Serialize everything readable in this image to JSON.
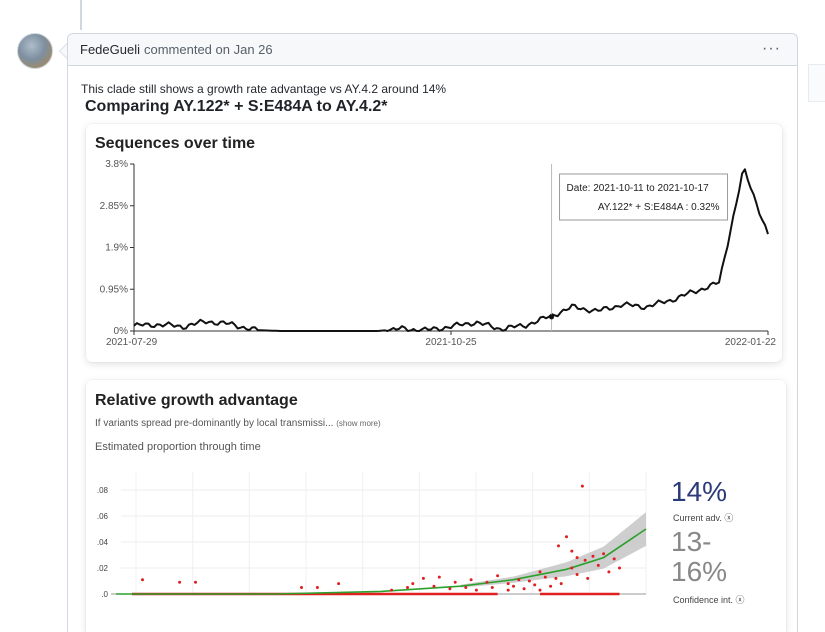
{
  "comment": {
    "author": "FedeGueli",
    "meta": "commented on Jan 26",
    "menu_label": "···",
    "body_text": "This clade still shows a growth rate advantage vs AY.4.2 around 14%",
    "body_heading": "Comparing AY.122* + S:E484A to AY.4.2*"
  },
  "seq_chart": {
    "title": "Sequences over time",
    "tooltip": {
      "line1": "Date: 2021-10-11 to 2021-10-17",
      "line2": "AY.122* + S:E484A : 0.32%"
    }
  },
  "growth_chart": {
    "title": "Relative growth advantage",
    "subtitle": "If variants spread pre-dominantly by local transmissi...",
    "show_more": "(show more)",
    "estimated_label": "Estimated proportion through time",
    "current_adv_value": "14%",
    "current_adv_label": "Current adv. ⓧ",
    "ci_value_top": "13-",
    "ci_value_bottom": "16%",
    "ci_label": "Confidence int. ⓧ"
  },
  "chart_data": [
    {
      "type": "line",
      "title": "Sequences over time",
      "x_ticks": [
        "2021-07-29",
        "2021-10-25",
        "2022-01-22"
      ],
      "y_ticks": [
        "0%",
        "0.95%",
        "1.9%",
        "2.85%",
        "3.8%"
      ],
      "ylim": [
        0,
        3.8
      ],
      "x": [
        0,
        1,
        2,
        3,
        4,
        5,
        6,
        7,
        8,
        9,
        10,
        11,
        12,
        13,
        14,
        15,
        16,
        17,
        18,
        19,
        20,
        21,
        22,
        23,
        24,
        25,
        26
      ],
      "series": [
        {
          "values": [
            0.12,
            0.15,
            0.1,
            0.22,
            0.15,
            0.02,
            0.0,
            0.0,
            0.0,
            0.0,
            0.0,
            0.05,
            0.02,
            0.1,
            0.2,
            0.05,
            0.12,
            0.32,
            0.55,
            0.45,
            0.6,
            0.55,
            0.7,
            0.9,
            1.1,
            3.7,
            2.2
          ]
        }
      ],
      "tooltip_x_index": 17
    },
    {
      "type": "scatter",
      "title": "Relative growth advantage",
      "ylabel": "Estimated proportion through time",
      "y_ticks": [
        ".0",
        ".02",
        ".04",
        ".06",
        ".08"
      ],
      "ylim": [
        0,
        0.09
      ],
      "scatter_points": [
        [
          0.05,
          0.011
        ],
        [
          0.12,
          0.009
        ],
        [
          0.15,
          0.009
        ],
        [
          0.35,
          0.005
        ],
        [
          0.38,
          0.005
        ],
        [
          0.42,
          0.008
        ],
        [
          0.52,
          0.003
        ],
        [
          0.55,
          0.005
        ],
        [
          0.56,
          0.008
        ],
        [
          0.58,
          0.012
        ],
        [
          0.6,
          0.006
        ],
        [
          0.61,
          0.013
        ],
        [
          0.63,
          0.004
        ],
        [
          0.64,
          0.009
        ],
        [
          0.66,
          0.005
        ],
        [
          0.67,
          0.011
        ],
        [
          0.68,
          0.003
        ],
        [
          0.7,
          0.009
        ],
        [
          0.71,
          0.005
        ],
        [
          0.72,
          0.014
        ],
        [
          0.74,
          0.008
        ],
        [
          0.75,
          0.006
        ],
        [
          0.76,
          0.011
        ],
        [
          0.77,
          0.004
        ],
        [
          0.78,
          0.01
        ],
        [
          0.79,
          0.007
        ],
        [
          0.8,
          0.017
        ],
        [
          0.81,
          0.013
        ],
        [
          0.82,
          0.006
        ],
        [
          0.83,
          0.012
        ],
        [
          0.84,
          0.008
        ],
        [
          0.85,
          0.044
        ],
        [
          0.86,
          0.02
        ],
        [
          0.87,
          0.015
        ],
        [
          0.88,
          0.083
        ],
        [
          0.885,
          0.026
        ],
        [
          0.89,
          0.012
        ],
        [
          0.9,
          0.029
        ],
        [
          0.91,
          0.022
        ],
        [
          0.92,
          0.031
        ],
        [
          0.93,
          0.017
        ],
        [
          0.94,
          0.027
        ],
        [
          0.95,
          0.02
        ],
        [
          0.835,
          0.037
        ],
        [
          0.86,
          0.033
        ],
        [
          0.87,
          0.028
        ],
        [
          0.8,
          0.003
        ],
        [
          0.74,
          0.003
        ]
      ],
      "fit": [
        [
          0.0,
          0.0
        ],
        [
          0.3,
          0.0
        ],
        [
          0.5,
          0.002
        ],
        [
          0.65,
          0.006
        ],
        [
          0.75,
          0.011
        ],
        [
          0.85,
          0.019
        ],
        [
          0.92,
          0.028
        ],
        [
          1.0,
          0.05
        ]
      ],
      "stats": {
        "current_adv": "14%",
        "confidence_int": "13-16%"
      },
      "colors": {
        "points": "#e02020",
        "fit": "#2ca02c",
        "band": "#bdbdbd"
      }
    }
  ]
}
